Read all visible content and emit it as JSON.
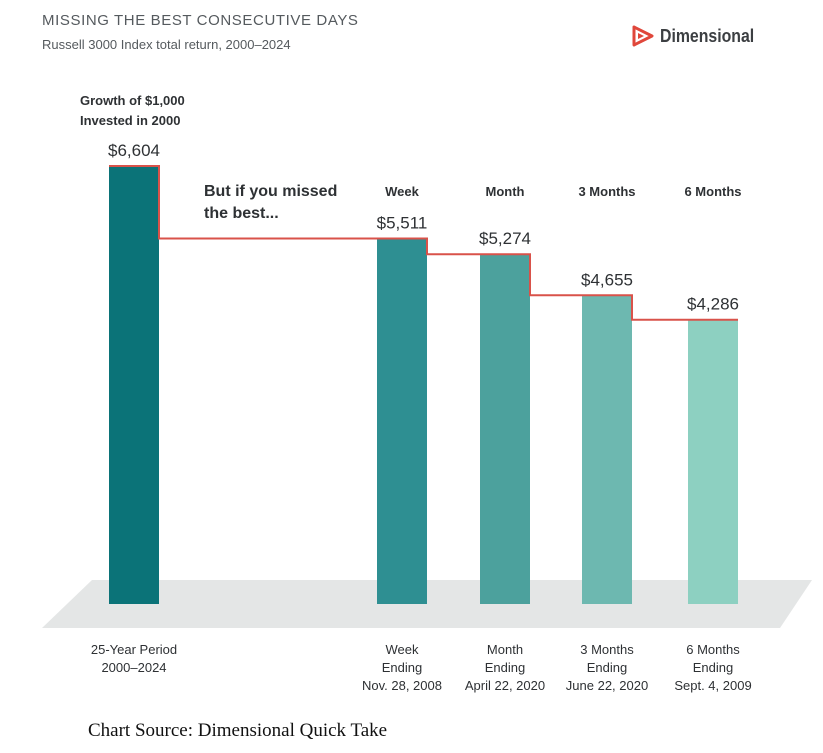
{
  "header": {
    "title": "MISSING THE BEST CONSECUTIVE DAYS",
    "subtitle": "Russell 3000 Index total return, 2000–2024"
  },
  "brand": {
    "name": "Dimensional",
    "logo_icon": "dimensional-logo-icon",
    "logo_color": "#e0473b"
  },
  "source": "Chart Source: Dimensional Quick Take",
  "chart_data": {
    "type": "bar",
    "annotation": [
      "But if you missed",
      "the best..."
    ],
    "annotation_color": "#d9524a",
    "baseline_label": [
      "Growth of $1,000",
      "Invested in 2000"
    ],
    "bars": [
      {
        "header": "",
        "value": 6604,
        "value_label": "$6,604",
        "bottom": [
          "25-Year Period",
          "2000–2024"
        ],
        "color": "#0b7378"
      },
      {
        "header": "Week",
        "value": 5511,
        "value_label": "$5,511",
        "bottom": [
          "Week",
          "Ending",
          "Nov. 28, 2008"
        ],
        "color": "#2e8f92"
      },
      {
        "header": "Month",
        "value": 5274,
        "value_label": "$5,274",
        "bottom": [
          "Month",
          "Ending",
          "April 22, 2020"
        ],
        "color": "#4ca19d"
      },
      {
        "header": "3 Months",
        "value": 4655,
        "value_label": "$4,655",
        "bottom": [
          "3 Months",
          "Ending",
          "June 22, 2020"
        ],
        "color": "#6db8b0"
      },
      {
        "header": "6 Months",
        "value": 4286,
        "value_label": "$4,286",
        "bottom": [
          "6 Months",
          "Ending",
          "Sept. 4, 2009"
        ],
        "color": "#8dd0c1"
      }
    ]
  }
}
